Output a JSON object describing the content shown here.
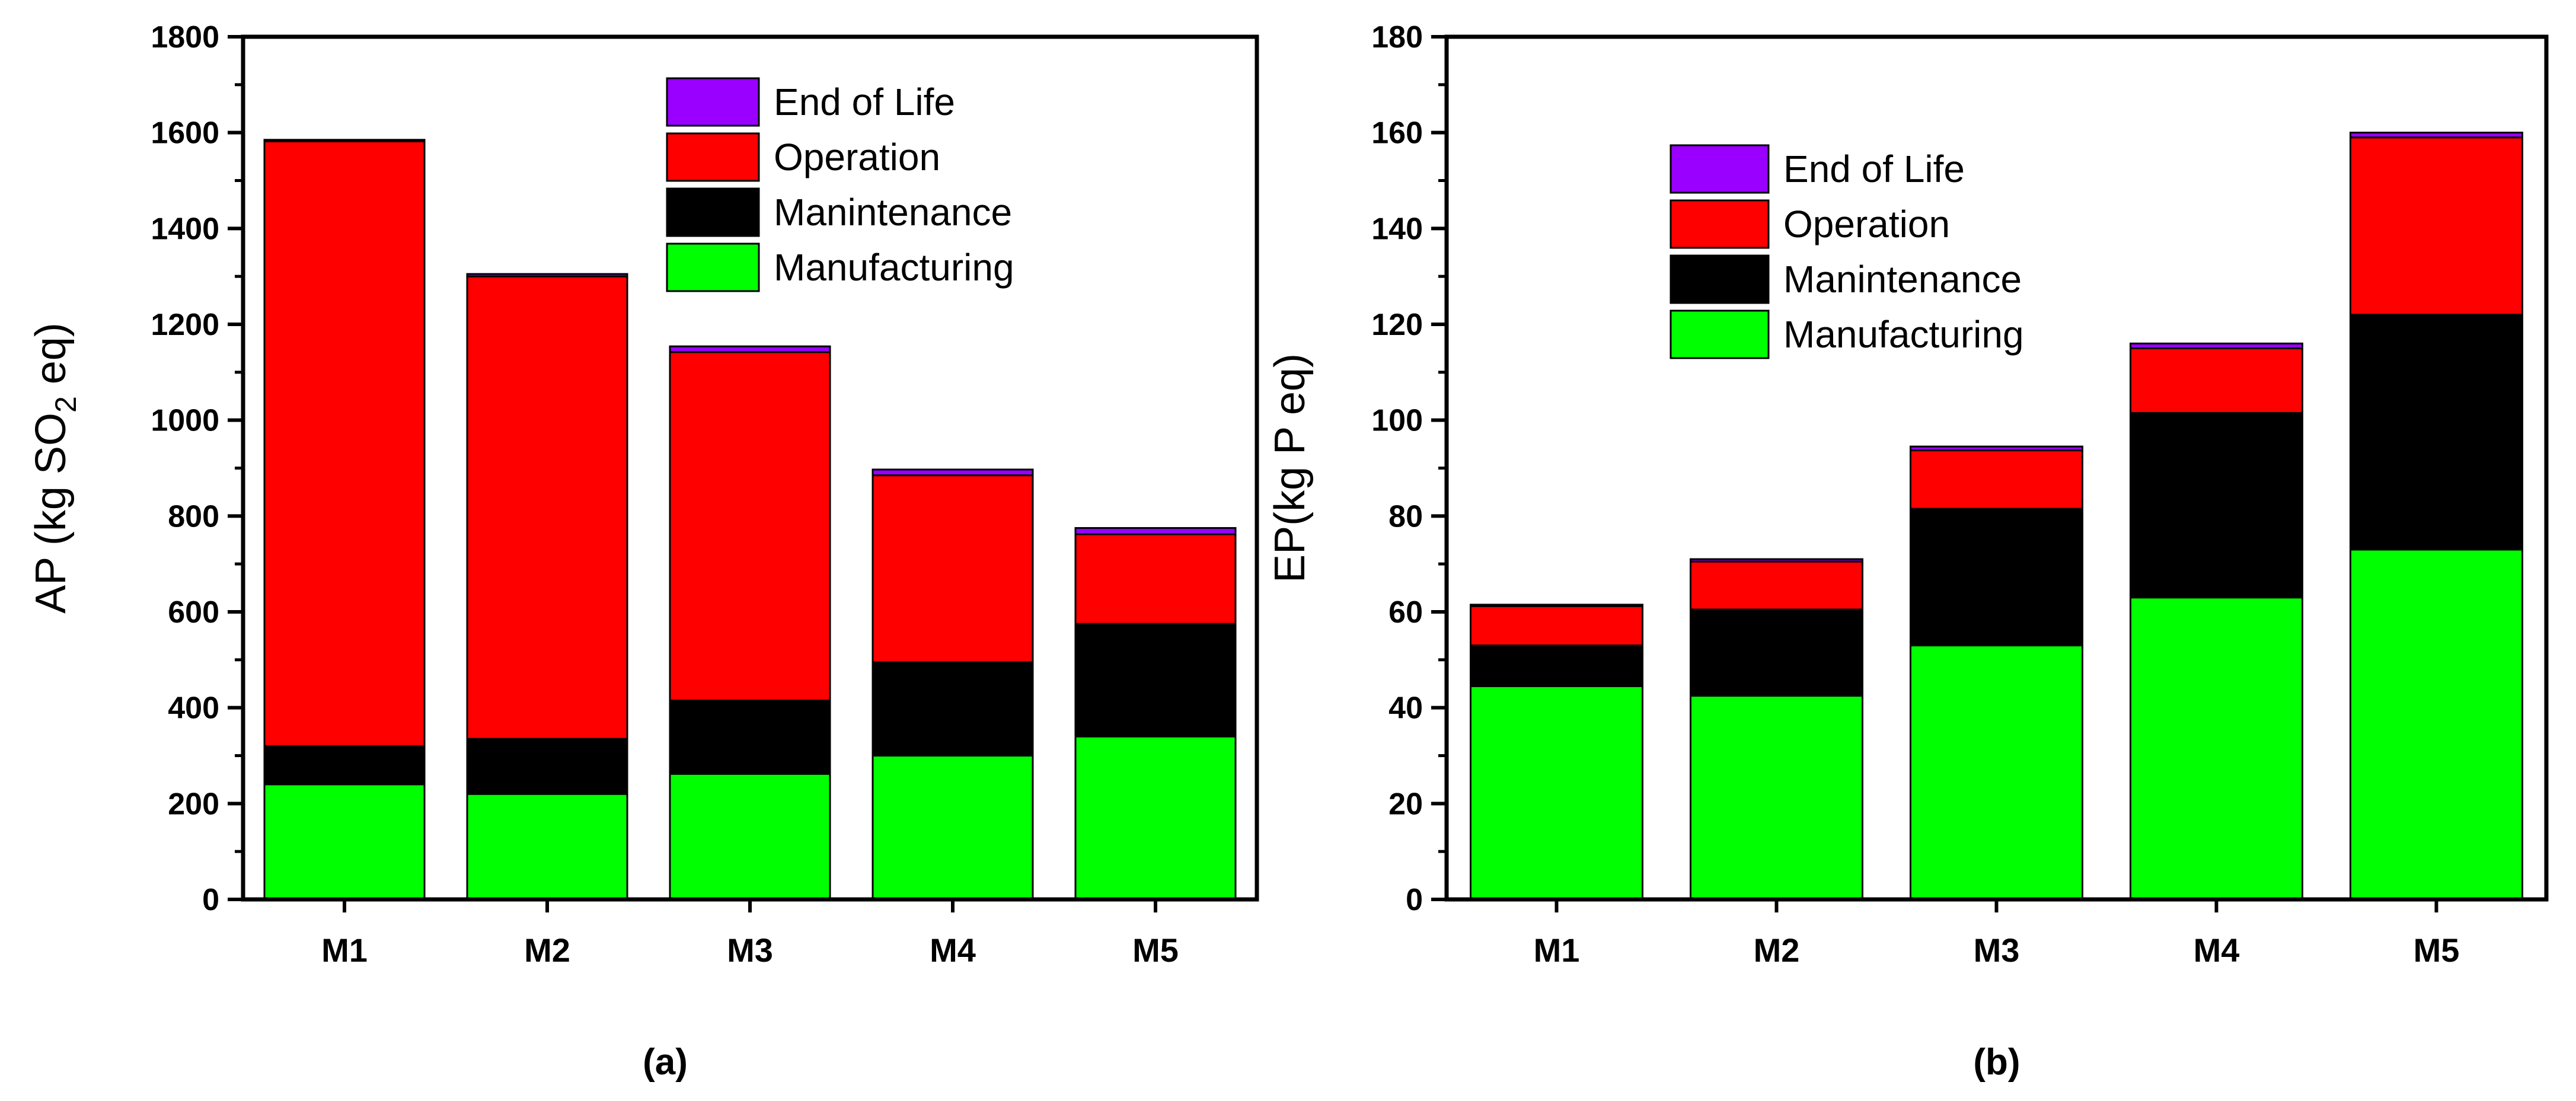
{
  "chart_data": [
    {
      "type": "bar",
      "stacked": true,
      "panel_label": "(a)",
      "ylabel_main": "AP (kg SO",
      "ylabel_sub": "2",
      "ylabel_tail": " eq)",
      "xlabel": "",
      "categories": [
        "M1",
        "M2",
        "M3",
        "M4",
        "M5"
      ],
      "ylim": [
        0,
        1800
      ],
      "yticks": [
        0,
        200,
        400,
        600,
        800,
        1000,
        1200,
        1400,
        1600,
        1800
      ],
      "legend_position": "top-right",
      "series": [
        {
          "name": "Manufacturing",
          "color": "#00ff00",
          "values": [
            240,
            220,
            262,
            300,
            340
          ]
        },
        {
          "name": "Manintenance",
          "color": "#000000",
          "values": [
            80,
            115,
            153,
            195,
            235
          ]
        },
        {
          "name": "Operation",
          "color": "#ff0000",
          "values": [
            1262,
            965,
            727,
            390,
            187
          ]
        },
        {
          "name": "End of Life",
          "color": "#9900ff",
          "values": [
            3,
            5,
            12,
            12,
            13
          ]
        }
      ]
    },
    {
      "type": "bar",
      "stacked": true,
      "panel_label": "(b)",
      "ylabel": "EP(kg P eq)",
      "xlabel": "",
      "categories": [
        "M1",
        "M2",
        "M3",
        "M4",
        "M5"
      ],
      "ylim": [
        0,
        180
      ],
      "yticks": [
        0,
        20,
        40,
        60,
        80,
        100,
        120,
        140,
        160,
        180
      ],
      "legend_position": "top-left",
      "series": [
        {
          "name": "Manufacturing",
          "color": "#00ff00",
          "values": [
            44.5,
            42.5,
            53,
            63,
            73
          ]
        },
        {
          "name": "Manintenance",
          "color": "#000000",
          "values": [
            8.5,
            18,
            28.5,
            38.5,
            49
          ]
        },
        {
          "name": "Operation",
          "color": "#ff0000",
          "values": [
            8.2,
            10,
            12.2,
            13.5,
            37
          ]
        },
        {
          "name": "End of Life",
          "color": "#9900ff",
          "values": [
            0.3,
            0.5,
            0.8,
            1,
            1
          ]
        }
      ]
    }
  ]
}
